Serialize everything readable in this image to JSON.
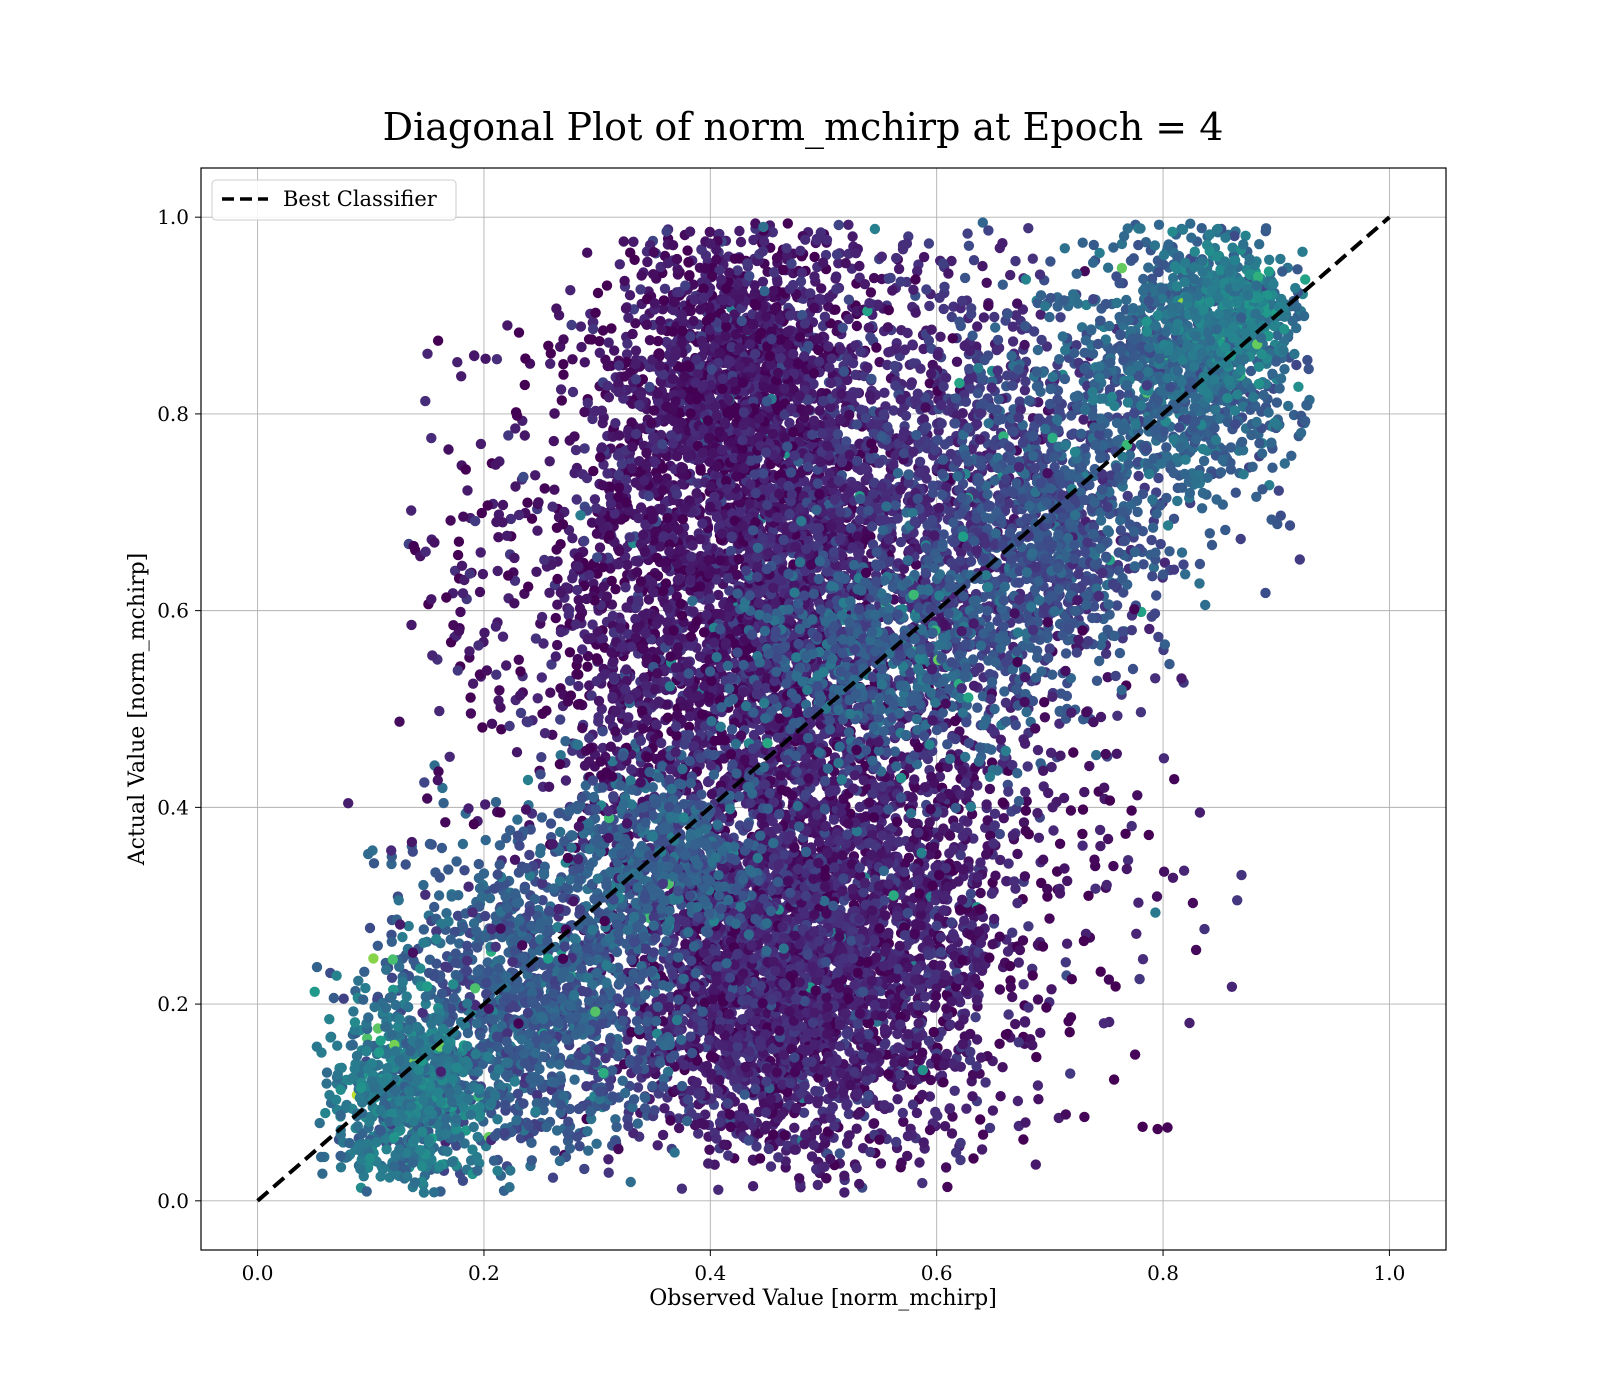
{
  "chart_data": {
    "type": "scatter",
    "title": "Diagonal Plot of norm_mchirp at Epoch = 4",
    "xlabel": "Observed Value [norm_mchirp]",
    "ylabel": "Actual Value [norm_mchirp]",
    "xlim": [
      -0.05,
      1.05
    ],
    "ylim": [
      -0.05,
      1.05
    ],
    "xticks": [
      0.0,
      0.2,
      0.4,
      0.6,
      0.8,
      1.0
    ],
    "yticks": [
      0.0,
      0.2,
      0.4,
      0.6,
      0.8,
      1.0
    ],
    "xtick_labels": [
      "0.0",
      "0.2",
      "0.4",
      "0.6",
      "0.8",
      "1.0"
    ],
    "ytick_labels": [
      "0.0",
      "0.2",
      "0.4",
      "0.6",
      "0.8",
      "1.0"
    ],
    "grid": true,
    "colormap": "viridis",
    "legend": {
      "placement": "top-left",
      "entries": [
        "Best Classifier"
      ]
    },
    "reference_line": {
      "name": "Best Classifier",
      "style": "dashed",
      "color": "#000000",
      "x": [
        0.0,
        1.0
      ],
      "y": [
        0.0,
        1.0
      ]
    },
    "point_clusters": [
      {
        "cx": 0.46,
        "cy": 0.6,
        "sx": 0.055,
        "sy": 0.2,
        "count": 3200,
        "color_value": 0.08
      },
      {
        "cx": 0.46,
        "cy": 0.22,
        "sx": 0.065,
        "sy": 0.09,
        "count": 2400,
        "color_value": 0.1
      },
      {
        "cx": 0.41,
        "cy": 0.84,
        "sx": 0.045,
        "sy": 0.08,
        "count": 1000,
        "color_value": 0.06
      },
      {
        "cx": 0.6,
        "cy": 0.72,
        "sx": 0.07,
        "sy": 0.13,
        "count": 1300,
        "color_value": 0.14
      },
      {
        "cx": 0.33,
        "cy": 0.6,
        "sx": 0.04,
        "sy": 0.16,
        "count": 900,
        "color_value": 0.06
      },
      {
        "cx": 0.59,
        "cy": 0.3,
        "sx": 0.04,
        "sy": 0.12,
        "count": 700,
        "color_value": 0.08
      },
      {
        "cx": 0.7,
        "cy": 0.68,
        "sx": 0.05,
        "sy": 0.08,
        "count": 900,
        "color_value": 0.25
      },
      {
        "cx": 0.82,
        "cy": 0.85,
        "sx": 0.05,
        "sy": 0.07,
        "count": 1100,
        "color_value": 0.32
      },
      {
        "cx": 0.86,
        "cy": 0.9,
        "sx": 0.03,
        "sy": 0.04,
        "count": 400,
        "color_value": 0.42
      },
      {
        "cx": 0.24,
        "cy": 0.2,
        "sx": 0.06,
        "sy": 0.08,
        "count": 1300,
        "color_value": 0.28
      },
      {
        "cx": 0.13,
        "cy": 0.11,
        "sx": 0.035,
        "sy": 0.05,
        "count": 700,
        "color_value": 0.4
      },
      {
        "cx": 0.55,
        "cy": 0.55,
        "sx": 0.06,
        "sy": 0.06,
        "count": 700,
        "color_value": 0.3
      },
      {
        "cx": 0.35,
        "cy": 0.35,
        "sx": 0.05,
        "sy": 0.05,
        "count": 600,
        "color_value": 0.3
      },
      {
        "cx": 0.67,
        "cy": 0.3,
        "sx": 0.06,
        "sy": 0.14,
        "count": 220,
        "color_value": 0.05
      },
      {
        "cx": 0.25,
        "cy": 0.6,
        "sx": 0.06,
        "sy": 0.18,
        "count": 220,
        "color_value": 0.06
      },
      {
        "cx": 0.78,
        "cy": 0.3,
        "sx": 0.05,
        "sy": 0.14,
        "count": 40,
        "color_value": 0.06
      },
      {
        "cx": 0.19,
        "cy": 0.68,
        "sx": 0.03,
        "sy": 0.12,
        "count": 40,
        "color_value": 0.08
      }
    ]
  }
}
